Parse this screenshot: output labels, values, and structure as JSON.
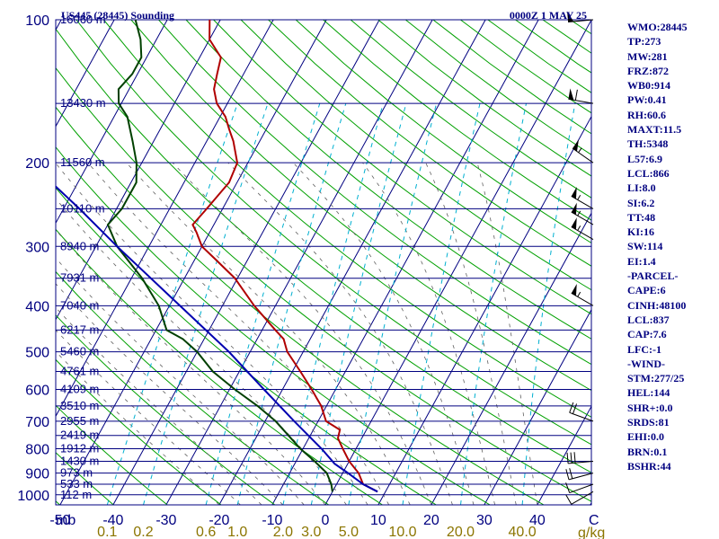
{
  "header": {
    "station": "US445 (28445) Sounding",
    "time": "0000Z  1 MAY 25"
  },
  "indices": [
    "WMO:28445",
    "TP:273",
    "MW:281",
    "FRZ:872",
    "WB0:914",
    "PW:0.41",
    "RH:60.6",
    "MAXT:11.5",
    "TH:5348",
    "L57:6.9",
    "LCL:866",
    "LI:8.0",
    "SI:6.2",
    "TT:48",
    "KI:16",
    "SW:114",
    "EI:1.4",
    "-PARCEL-",
    "CAPE:6",
    "CINH:48100",
    "LCL:837",
    "CAP:7.6",
    "LFC:-1",
    "-WIND-",
    "STM:277/25",
    "HEL:144",
    "SHR+:0.0",
    "SRDS:81",
    "EHI:0.0",
    "BRN:0.1",
    "BSHR:44"
  ],
  "chart_data": {
    "type": "line",
    "chart_kind": "skew-t log-p sounding",
    "x_axis_label": "C",
    "x_axis_unit_prefix": "mb",
    "mixing_ratio_unit": "g/kg",
    "temperature_ticks": [
      -50,
      -40,
      -30,
      -20,
      -10,
      0,
      10,
      20,
      30,
      40
    ],
    "temperature_tick_labels": [
      "-50",
      "-40",
      "-30",
      "-20",
      "-10",
      "0",
      "10",
      "20",
      "30",
      "40"
    ],
    "pressure_levels": [
      100,
      200,
      300,
      400,
      500,
      600,
      700,
      800,
      900,
      1000
    ],
    "pressure_labels": [
      "100",
      "200",
      "300",
      "400",
      "500",
      "600",
      "700",
      "800",
      "900",
      "1000"
    ],
    "pressure_range": [
      100,
      1050
    ],
    "temperature_range_at_1000": [
      -50,
      50
    ],
    "height_levels": [
      {
        "p": 100,
        "label": "16060 m"
      },
      {
        "p": 150,
        "label": "13430 m"
      },
      {
        "p": 200,
        "label": "11560 m"
      },
      {
        "p": 250,
        "label": "10110 m"
      },
      {
        "p": 300,
        "label": "8940 m"
      },
      {
        "p": 350,
        "label": "7931 m"
      },
      {
        "p": 400,
        "label": "7040 m"
      },
      {
        "p": 450,
        "label": "6217 m"
      },
      {
        "p": 500,
        "label": "5460 m"
      },
      {
        "p": 550,
        "label": "4761 m"
      },
      {
        "p": 600,
        "label": "4109 m"
      },
      {
        "p": 650,
        "label": "3510 m"
      },
      {
        "p": 700,
        "label": "2955 m"
      },
      {
        "p": 750,
        "label": "2419 m"
      },
      {
        "p": 800,
        "label": "1912 m"
      },
      {
        "p": 850,
        "label": "1430 m"
      },
      {
        "p": 900,
        "label": "973 m"
      },
      {
        "p": 950,
        "label": "533 m"
      },
      {
        "p": 1000,
        "label": "112 m"
      }
    ],
    "mixing_ratio_lines": [
      {
        "w": 0.1,
        "label": "0.1"
      },
      {
        "w": 0.2,
        "label": "0.2"
      },
      {
        "w": 0.6,
        "label": "0.6"
      },
      {
        "w": 1.0,
        "label": "1.0"
      },
      {
        "w": 2.0,
        "label": "2.0"
      },
      {
        "w": 3.0,
        "label": "3.0"
      },
      {
        "w": 5.0,
        "label": "5.0"
      },
      {
        "w": 10.0,
        "label": "10.0"
      },
      {
        "w": 20.0,
        "label": "20.0"
      },
      {
        "w": 40.0,
        "label": "40.0"
      }
    ],
    "series": [
      {
        "role": "temperature",
        "color": "#b00000",
        "points": [
          {
            "p": 985,
            "t": 8.5
          },
          {
            "p": 950,
            "t": 5
          },
          {
            "p": 900,
            "t": 3
          },
          {
            "p": 850,
            "t": 0
          },
          {
            "p": 800,
            "t": -2.5
          },
          {
            "p": 760,
            "t": -4.5
          },
          {
            "p": 730,
            "t": -5
          },
          {
            "p": 700,
            "t": -8.5
          },
          {
            "p": 650,
            "t": -11
          },
          {
            "p": 600,
            "t": -14.5
          },
          {
            "p": 550,
            "t": -18.5
          },
          {
            "p": 500,
            "t": -23
          },
          {
            "p": 470,
            "t": -25
          },
          {
            "p": 450,
            "t": -27.5
          },
          {
            "p": 400,
            "t": -34
          },
          {
            "p": 350,
            "t": -40.5
          },
          {
            "p": 320,
            "t": -46
          },
          {
            "p": 300,
            "t": -50
          },
          {
            "p": 280,
            "t": -52.5
          },
          {
            "p": 270,
            "t": -54
          },
          {
            "p": 250,
            "t": -53
          },
          {
            "p": 220,
            "t": -51.5
          },
          {
            "p": 200,
            "t": -52
          },
          {
            "p": 180,
            "t": -55
          },
          {
            "p": 170,
            "t": -57
          },
          {
            "p": 160,
            "t": -59
          },
          {
            "p": 150,
            "t": -62
          },
          {
            "p": 140,
            "t": -64
          },
          {
            "p": 130,
            "t": -65
          },
          {
            "p": 120,
            "t": -66
          },
          {
            "p": 110,
            "t": -70
          },
          {
            "p": 100,
            "t": -72
          }
        ]
      },
      {
        "role": "dewpoint",
        "color": "#004000",
        "points": [
          {
            "p": 985,
            "t": 0
          },
          {
            "p": 950,
            "t": -1
          },
          {
            "p": 900,
            "t": -3
          },
          {
            "p": 850,
            "t": -6.5
          },
          {
            "p": 800,
            "t": -10.5
          },
          {
            "p": 700,
            "t": -18
          },
          {
            "p": 650,
            "t": -23
          },
          {
            "p": 600,
            "t": -29
          },
          {
            "p": 550,
            "t": -35
          },
          {
            "p": 500,
            "t": -40
          },
          {
            "p": 470,
            "t": -44
          },
          {
            "p": 450,
            "t": -48
          },
          {
            "p": 400,
            "t": -52
          },
          {
            "p": 350,
            "t": -58
          },
          {
            "p": 300,
            "t": -66
          },
          {
            "p": 270,
            "t": -70
          },
          {
            "p": 250,
            "t": -69
          },
          {
            "p": 220,
            "t": -69
          },
          {
            "p": 200,
            "t": -71
          },
          {
            "p": 180,
            "t": -74
          },
          {
            "p": 160,
            "t": -77.5
          },
          {
            "p": 150,
            "t": -80.5
          },
          {
            "p": 140,
            "t": -82
          },
          {
            "p": 130,
            "t": -81
          },
          {
            "p": 120,
            "t": -81
          },
          {
            "p": 110,
            "t": -83
          },
          {
            "p": 100,
            "t": -86
          }
        ]
      },
      {
        "role": "parcel",
        "color": "#0000b0",
        "points": [
          {
            "p": 985,
            "t": 8.5
          },
          {
            "p": 950,
            "t": 5
          },
          {
            "p": 900,
            "t": 1
          },
          {
            "p": 860,
            "t": -2.5
          },
          {
            "p": 800,
            "t": -6.5
          },
          {
            "p": 700,
            "t": -14.5
          },
          {
            "p": 600,
            "t": -23.5
          },
          {
            "p": 500,
            "t": -34
          },
          {
            "p": 400,
            "t": -48
          },
          {
            "p": 300,
            "t": -66
          },
          {
            "p": 250,
            "t": -77
          },
          {
            "p": 200,
            "t": -91
          },
          {
            "p": 150,
            "t": -108
          },
          {
            "p": 100,
            "t": -133
          }
        ]
      }
    ],
    "wind_barbs": [
      {
        "p": 100,
        "dir": 265,
        "spd": 50
      },
      {
        "p": 150,
        "dir": 280,
        "spd": 60
      },
      {
        "p": 200,
        "dir": 305,
        "spd": 55
      },
      {
        "p": 250,
        "dir": 300,
        "spd": 55
      },
      {
        "p": 270,
        "dir": 300,
        "spd": 55
      },
      {
        "p": 290,
        "dir": 300,
        "spd": 55
      },
      {
        "p": 400,
        "dir": 300,
        "spd": 55
      },
      {
        "p": 700,
        "dir": 290,
        "spd": 20
      },
      {
        "p": 850,
        "dir": 265,
        "spd": 30
      },
      {
        "p": 900,
        "dir": 255,
        "spd": 20
      },
      {
        "p": 950,
        "dir": 250,
        "spd": 10
      },
      {
        "p": 985,
        "dir": 240,
        "spd": 10
      }
    ]
  }
}
